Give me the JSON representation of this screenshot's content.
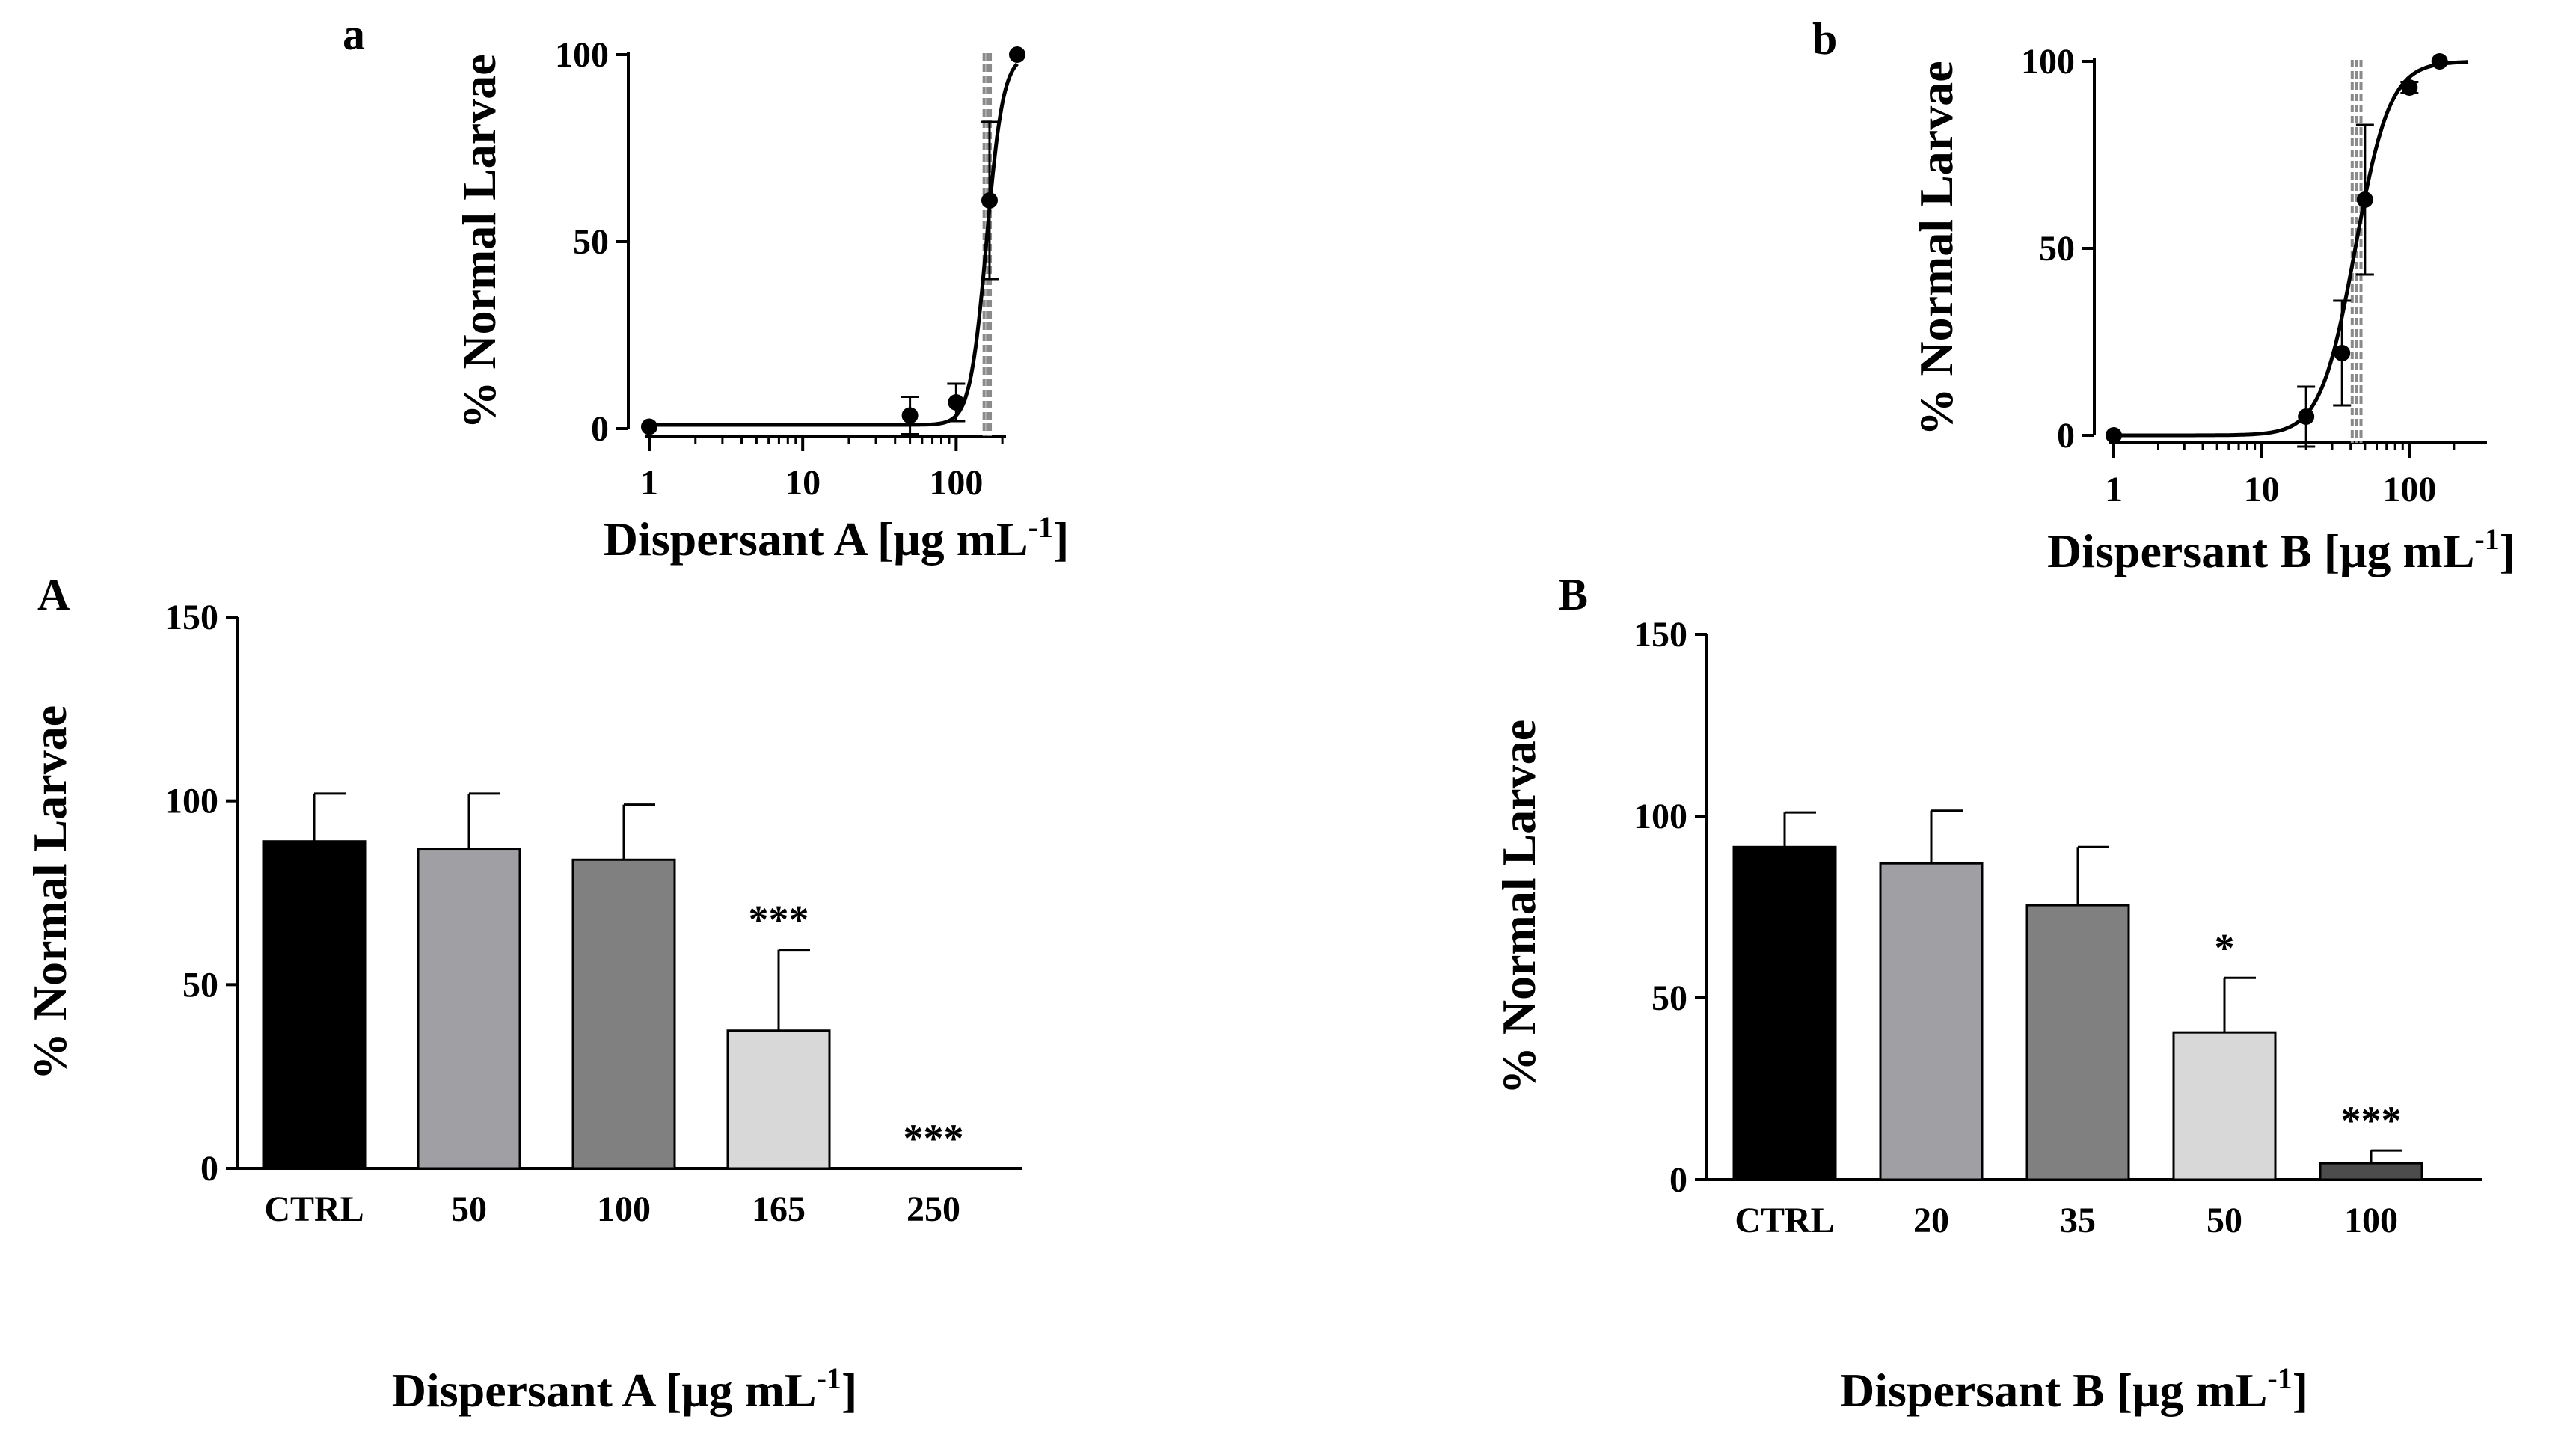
{
  "chart_data": [
    {
      "id": "a",
      "panel_label": "a",
      "type": "scatter",
      "xscale": "log",
      "xlabel": "Dispersant A [μg mL",
      "xlabel_sup": "-1",
      "xlabel_close": "]",
      "ylabel": "% Normal Larvae",
      "xlim": [
        1,
        250
      ],
      "ylim": [
        0,
        100
      ],
      "x_ticks": [
        1,
        10,
        100
      ],
      "x_tick_labels": [
        "1",
        "10",
        "100"
      ],
      "y_ticks": [
        0,
        50,
        100
      ],
      "y_tick_labels": [
        "0",
        "50",
        "100"
      ],
      "points": [
        {
          "x": 1,
          "y": 0.5,
          "err": 0
        },
        {
          "x": 50,
          "y": 3.5,
          "err": 5
        },
        {
          "x": 100,
          "y": 7,
          "err": 5
        },
        {
          "x": 165,
          "y": 61,
          "err": 21
        },
        {
          "x": 250,
          "y": 100,
          "err": 0
        }
      ],
      "fit": {
        "model": "sigmoid",
        "bottom": 1,
        "top": 100,
        "ec50": 158,
        "hill": 8
      },
      "ci_lines": [
        152,
        160,
        167
      ]
    },
    {
      "id": "b",
      "panel_label": "b",
      "type": "scatter",
      "xscale": "log",
      "xlabel": "Dispersant B [μg mL",
      "xlabel_sup": "-1",
      "xlabel_close": "]",
      "ylabel": "% Normal Larvae",
      "xlim": [
        1,
        250
      ],
      "ylim": [
        0,
        100
      ],
      "x_ticks": [
        1,
        10,
        100
      ],
      "x_tick_labels": [
        "1",
        "10",
        "100"
      ],
      "y_ticks": [
        0,
        50,
        100
      ],
      "y_tick_labels": [
        "0",
        "50",
        "100"
      ],
      "points": [
        {
          "x": 1,
          "y": 0,
          "err": 0
        },
        {
          "x": 20,
          "y": 5,
          "err": 8
        },
        {
          "x": 35,
          "y": 22,
          "err": 14
        },
        {
          "x": 50,
          "y": 63,
          "err": 20
        },
        {
          "x": 100,
          "y": 93,
          "err": 1.5
        },
        {
          "x": 160,
          "y": 100,
          "err": 0
        }
      ],
      "fit": {
        "model": "sigmoid",
        "bottom": 0,
        "top": 100,
        "ec50": 43,
        "hill": 3.7
      },
      "ci_lines": [
        41,
        44,
        47
      ]
    },
    {
      "id": "A",
      "panel_label": "A",
      "type": "bar",
      "xlabel": "Dispersant A [μg mL",
      "xlabel_sup": "-1",
      "xlabel_close": "]",
      "ylabel": "% Normal Larvae",
      "ylim": [
        0,
        150
      ],
      "y_ticks": [
        0,
        50,
        100,
        150
      ],
      "y_tick_labels": [
        "0",
        "50",
        "100",
        "150"
      ],
      "categories": [
        "CTRL",
        "50",
        "100",
        "165",
        "250"
      ],
      "values": [
        89,
        87,
        84,
        37.5,
        0
      ],
      "errors": [
        13,
        15,
        15,
        22,
        0
      ],
      "annotations": [
        "",
        "",
        "",
        "***",
        "***"
      ],
      "colors": [
        "#000000",
        "#a0a0a4",
        "#808080",
        "#d8d8d8",
        "#ffffff"
      ]
    },
    {
      "id": "B",
      "panel_label": "B",
      "type": "bar",
      "xlabel": "Dispersant B [μg mL",
      "xlabel_sup": "-1",
      "xlabel_close": "]",
      "ylabel": "% Normal Larvae",
      "ylim": [
        0,
        150
      ],
      "y_ticks": [
        0,
        50,
        100,
        150
      ],
      "y_tick_labels": [
        "0",
        "50",
        "100",
        "150"
      ],
      "categories": [
        "CTRL",
        "20",
        "35",
        "50",
        "100"
      ],
      "values": [
        91.5,
        87,
        75.5,
        40.5,
        4.5
      ],
      "errors": [
        9.5,
        14.5,
        16,
        15,
        3.5
      ],
      "annotations": [
        "",
        "",
        "",
        "*",
        "***"
      ],
      "colors": [
        "#000000",
        "#a0a0a4",
        "#808080",
        "#d8d8d8",
        "#4c4c4c"
      ]
    }
  ]
}
